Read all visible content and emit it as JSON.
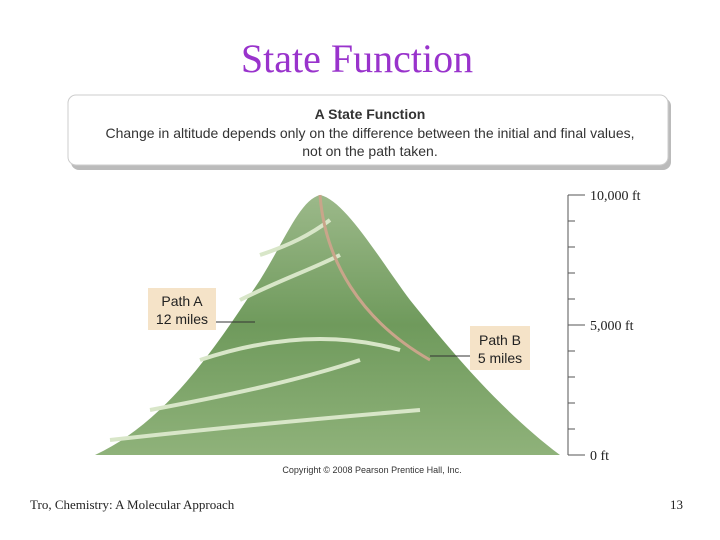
{
  "slide": {
    "title": "State Function",
    "caption": {
      "heading": "A State Function",
      "lines": [
        "Change in altitude depends only on the difference between the initial and final values,",
        "not on the path taken."
      ]
    },
    "path_a": [
      "Path A",
      "12 miles"
    ],
    "path_b": [
      "Path B",
      "5 miles"
    ],
    "scale": [
      "10,000 ft",
      "5,000 ft",
      "0 ft"
    ],
    "copyright": "Copyright © 2008 Pearson Prentice Hall, Inc.",
    "footer": "Tro, Chemistry: A Molecular Approach",
    "page_number": "13"
  }
}
